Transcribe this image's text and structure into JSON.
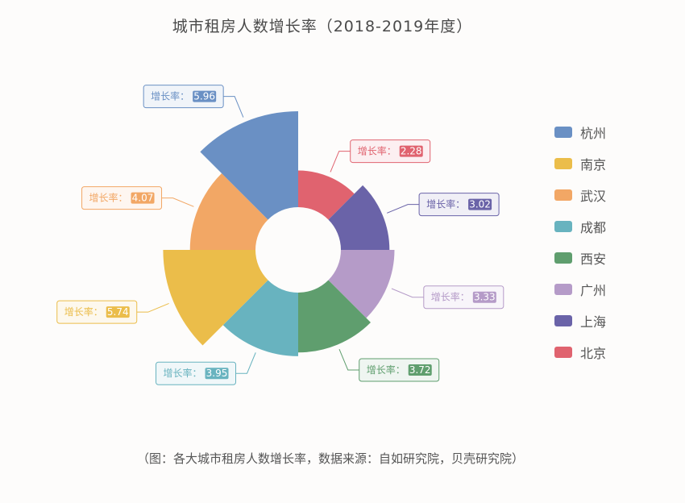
{
  "title": "城市租房人数增长率（2018-2019年度）",
  "footnote": "（图：各大城市租房人数增长率，数据来源：自如研究院，贝壳研究院）",
  "label_prefix": "增长率：",
  "chart_data": {
    "type": "rose",
    "series": [
      {
        "name": "北京",
        "value": 2.28,
        "color": "#e0636f"
      },
      {
        "name": "上海",
        "value": 3.02,
        "color": "#6a63a8"
      },
      {
        "name": "广州",
        "value": 3.33,
        "color": "#b59bc8"
      },
      {
        "name": "西安",
        "value": 3.72,
        "color": "#5f9e6e"
      },
      {
        "name": "成都",
        "value": 3.95,
        "color": "#68b3bf"
      },
      {
        "name": "南京",
        "value": 5.74,
        "color": "#ebbd4a"
      },
      {
        "name": "武汉",
        "value": 4.07,
        "color": "#f2a765"
      },
      {
        "name": "杭州",
        "value": 5.96,
        "color": "#6a90c4"
      }
    ],
    "legend": [
      "杭州",
      "南京",
      "武汉",
      "成都",
      "西安",
      "广州",
      "上海",
      "北京"
    ],
    "legend_position": "right"
  }
}
